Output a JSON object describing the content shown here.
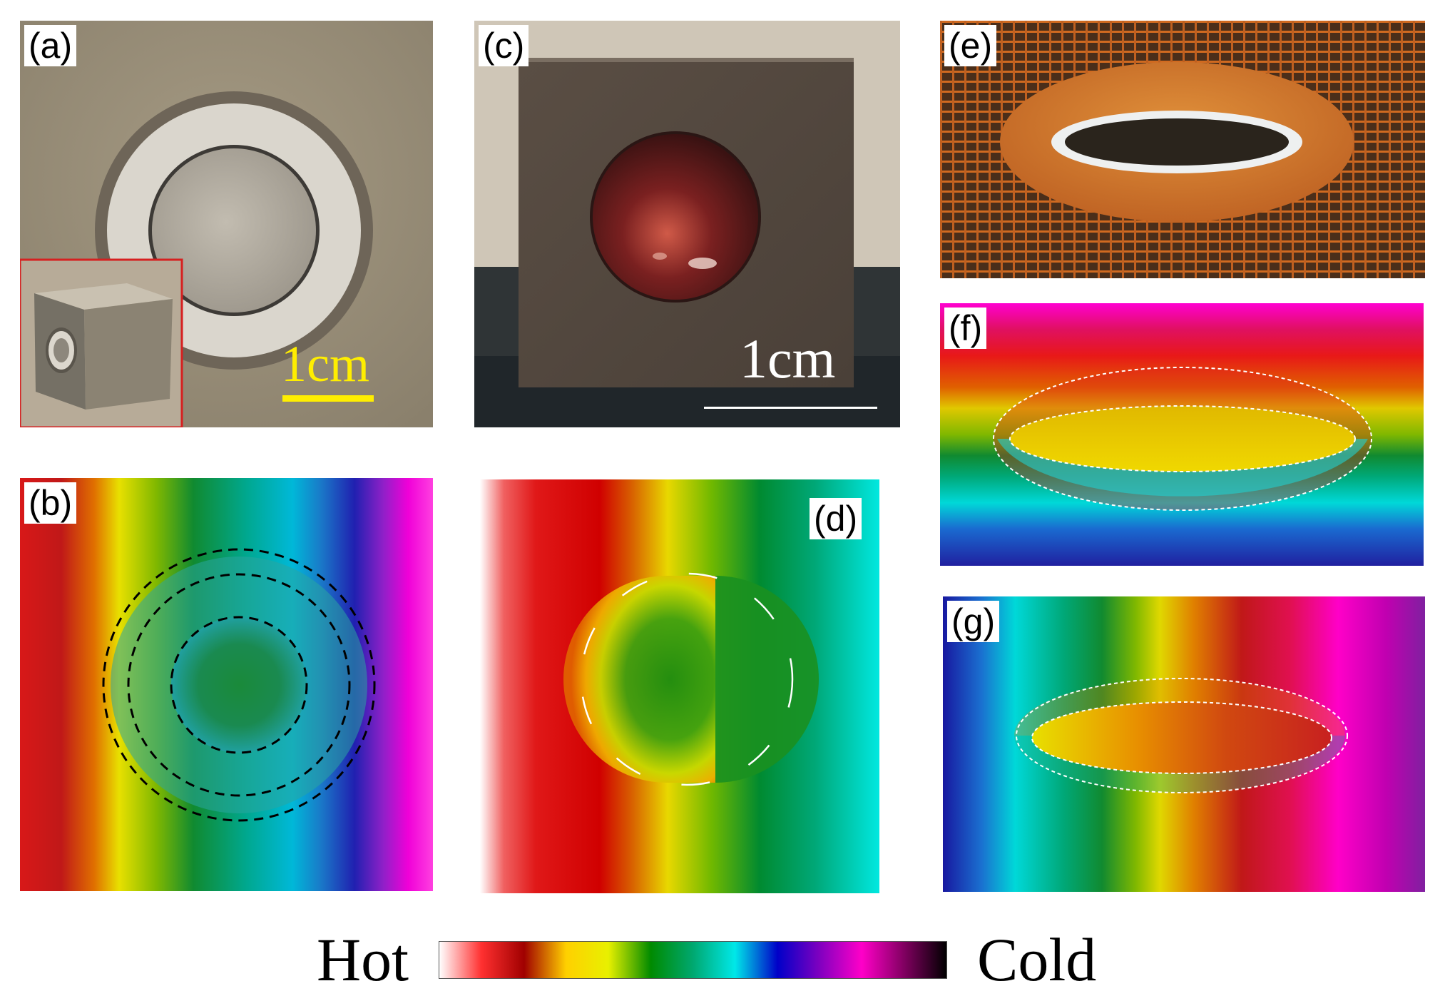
{
  "panels": {
    "a": {
      "label": "(a)",
      "scale_text": "1cm",
      "scale_color": "#ffee00"
    },
    "b": {
      "label": "(b)"
    },
    "c": {
      "label": "(c)",
      "scale_text": "1cm",
      "scale_color": "#ffffff"
    },
    "d": {
      "label": "(d)"
    },
    "e": {
      "label": "(e)"
    },
    "f": {
      "label": "(f)"
    },
    "g": {
      "label": "(g)"
    }
  },
  "legend": {
    "hot_label": "Hot",
    "cold_label": "Cold",
    "colormap": [
      "#ffffff",
      "#ff3030",
      "#a00000",
      "#ffd000",
      "#e8f000",
      "#008a00",
      "#00a870",
      "#00e8e8",
      "#0000c8",
      "#8000c0",
      "#ff00c8",
      "#800060",
      "#000000"
    ]
  }
}
